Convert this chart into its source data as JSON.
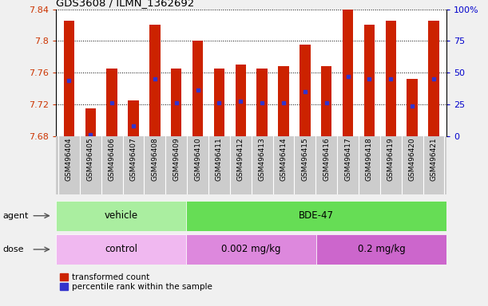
{
  "title": "GDS3608 / ILMN_1362692",
  "samples": [
    "GSM496404",
    "GSM496405",
    "GSM496406",
    "GSM496407",
    "GSM496408",
    "GSM496409",
    "GSM496410",
    "GSM496411",
    "GSM496412",
    "GSM496413",
    "GSM496414",
    "GSM496415",
    "GSM496416",
    "GSM496417",
    "GSM496418",
    "GSM496419",
    "GSM496420",
    "GSM496421"
  ],
  "bar_tops": [
    7.825,
    7.715,
    7.765,
    7.725,
    7.82,
    7.765,
    7.8,
    7.765,
    7.77,
    7.765,
    7.768,
    7.795,
    7.768,
    7.84,
    7.82,
    7.825,
    7.752,
    7.825
  ],
  "blue_marks": [
    7.75,
    7.682,
    7.722,
    7.693,
    7.752,
    7.722,
    7.738,
    7.722,
    7.724,
    7.722,
    7.722,
    7.736,
    7.722,
    7.755,
    7.752,
    7.752,
    7.718,
    7.752
  ],
  "bar_bottom": 7.68,
  "ylim_left": [
    7.68,
    7.84
  ],
  "ylim_right": [
    0,
    100
  ],
  "yticks_left": [
    7.68,
    7.72,
    7.76,
    7.8,
    7.84
  ],
  "ytick_labels_left": [
    "7.68",
    "7.72",
    "7.76",
    "7.8",
    "7.84"
  ],
  "yticks_right": [
    0,
    25,
    50,
    75,
    100
  ],
  "ytick_labels_right": [
    "0",
    "25",
    "50",
    "75",
    "100%"
  ],
  "bar_color": "#cc2200",
  "blue_color": "#3333cc",
  "grid_color": "#000000",
  "agent_groups": [
    {
      "label": "vehicle",
      "start": 0,
      "end": 6,
      "color": "#aaeea0"
    },
    {
      "label": "BDE-47",
      "start": 6,
      "end": 18,
      "color": "#66dd55"
    }
  ],
  "dose_groups": [
    {
      "label": "control",
      "start": 0,
      "end": 6,
      "color": "#f0b8f0"
    },
    {
      "label": "0.002 mg/kg",
      "start": 6,
      "end": 12,
      "color": "#dd88dd"
    },
    {
      "label": "0.2 mg/kg",
      "start": 12,
      "end": 18,
      "color": "#cc66cc"
    }
  ],
  "legend_items": [
    {
      "color": "#cc2200",
      "label": "transformed count"
    },
    {
      "color": "#3333cc",
      "label": "percentile rank within the sample"
    }
  ],
  "xlabel_bg": "#cccccc",
  "fig_bg": "#f0f0f0",
  "plot_bg": "#ffffff",
  "left_label_color": "#cc3300",
  "right_label_color": "#0000cc"
}
